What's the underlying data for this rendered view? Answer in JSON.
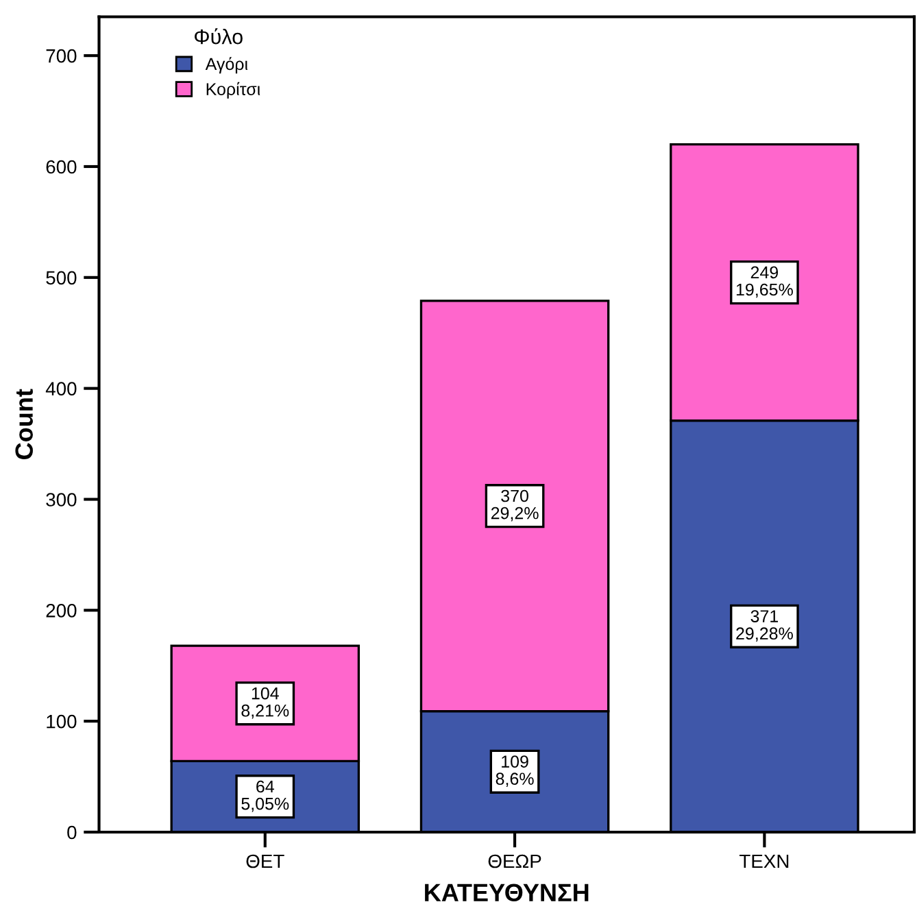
{
  "chart_data": {
    "type": "bar",
    "stacked": true,
    "xlabel": "ΚΑΤΕΥΘΥΝΣΗ",
    "ylabel": "Count",
    "legend_title": "Φύλο",
    "legend": "top left",
    "grid": false,
    "categories": [
      "ΘΕΤ",
      "ΘΕΩΡ",
      "ΤΕΧΝ"
    ],
    "series": [
      {
        "name": "Αγόρι",
        "color": "#3f57a9",
        "values": [
          64,
          109,
          371
        ],
        "value_labels": [
          "64\n5,05%",
          "109\n8,6%",
          "371\n29,28%"
        ]
      },
      {
        "name": "Κορίτσι",
        "color": "#ff66cc",
        "values": [
          104,
          370,
          249
        ],
        "value_labels": [
          "104\n8,21%",
          "370\n29,2%",
          "249\n19,65%"
        ]
      }
    ],
    "ylim": [
      0,
      735
    ],
    "yticks": [
      0,
      100,
      200,
      300,
      400,
      500,
      600,
      700
    ]
  }
}
